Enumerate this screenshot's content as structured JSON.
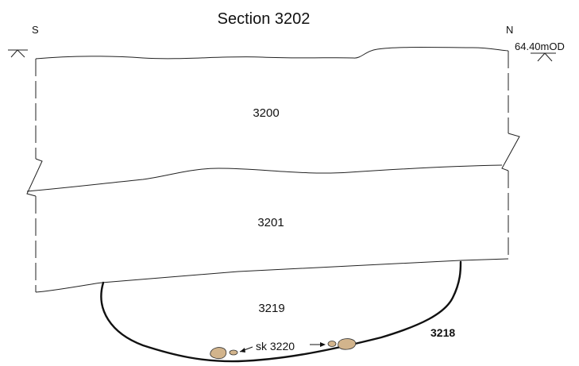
{
  "section": {
    "title": "Section 3202",
    "orientation": {
      "left": "S",
      "right": "N"
    },
    "datum_label": "64.40mOD"
  },
  "layers": [
    {
      "id": "layer-3200",
      "label": "3200"
    },
    {
      "id": "layer-3201",
      "label": "3201"
    },
    {
      "id": "fill-3219",
      "label": "3219"
    }
  ],
  "cut": {
    "label": "3218"
  },
  "skeleton": {
    "label": "sk 3220"
  },
  "colors": {
    "stone_fill": "#d2b48c",
    "line": "#222222",
    "background": "#ffffff"
  }
}
